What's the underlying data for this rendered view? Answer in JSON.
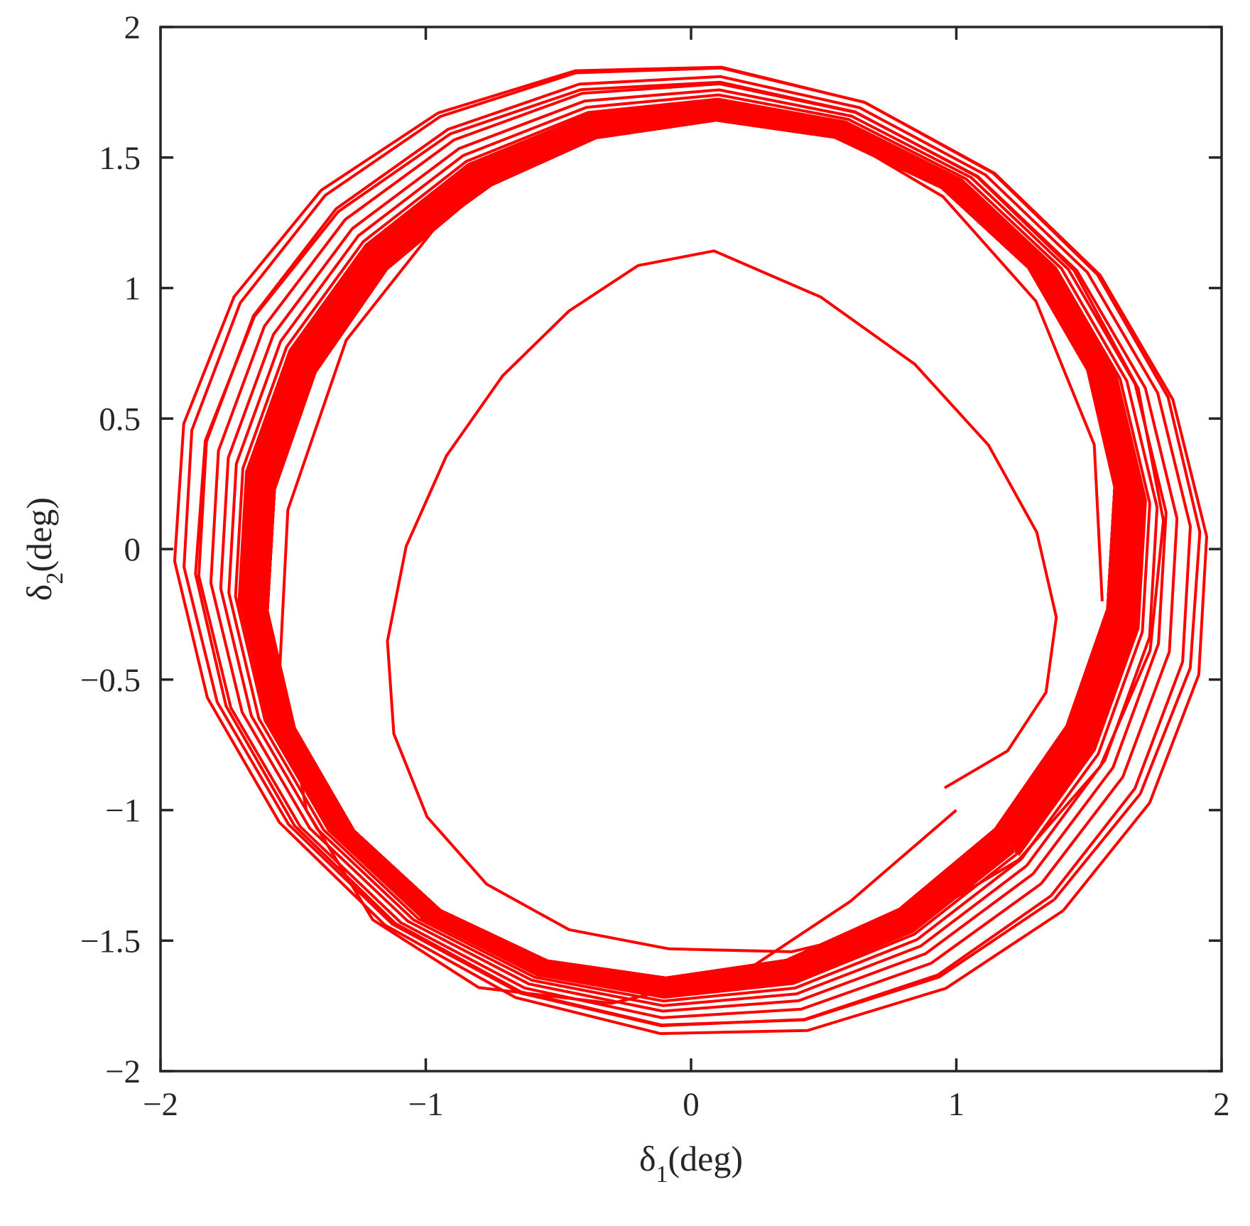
{
  "chart_data": {
    "type": "line",
    "title": "",
    "xlabel": {
      "symbol": "δ",
      "subscript": "1",
      "unit": "(deg)"
    },
    "ylabel": {
      "symbol": "δ",
      "subscript": "2",
      "unit": "(deg)"
    },
    "xlim": [
      -2,
      2
    ],
    "ylim": [
      -2,
      2
    ],
    "xticks": [
      -2,
      -1,
      0,
      1,
      2
    ],
    "xtick_labels": [
      "−2",
      "−1",
      "0",
      "1",
      "2"
    ],
    "yticks": [
      -2,
      -1.5,
      -1,
      -0.5,
      0,
      0.5,
      1,
      1.5,
      2
    ],
    "ytick_labels": [
      "−2",
      "−1.5",
      "−1",
      "−0.5",
      "0",
      "0.5",
      "1",
      "1.5",
      "2"
    ],
    "grid": false,
    "legend": false,
    "series": [
      {
        "color": "#ff0000",
        "description": "Phase trajectory spiralling from (1, -1) to a limit cycle",
        "start_point": [
          1.0,
          -1.0
        ],
        "limit_cycle": {
          "peak_x": 1.61,
          "peak_y": 1.65,
          "min_x": -1.61,
          "min_y": -1.65,
          "peak_x_at_y": 0.1,
          "peak_y_at_x": -0.1
        },
        "max_excursion": {
          "peak_x": 1.95,
          "peak_y": 1.86,
          "min_x": -1.97,
          "min_y": -1.88,
          "peak_x_at_y": 0.55,
          "peak_y_at_x": 0.8
        },
        "x": [
          1.0,
          0.6,
          0.2,
          -0.3,
          -0.8,
          -1.2,
          -1.45,
          -1.55,
          -1.52,
          -1.3,
          -0.95,
          -0.5,
          0.0,
          0.5,
          0.95,
          1.3,
          1.52,
          1.55
        ],
        "y": [
          -1.0,
          -1.35,
          -1.62,
          -1.74,
          -1.68,
          -1.42,
          -1.0,
          -0.45,
          0.15,
          0.8,
          1.25,
          1.58,
          1.7,
          1.62,
          1.35,
          0.95,
          0.4,
          -0.2
        ]
      }
    ]
  }
}
